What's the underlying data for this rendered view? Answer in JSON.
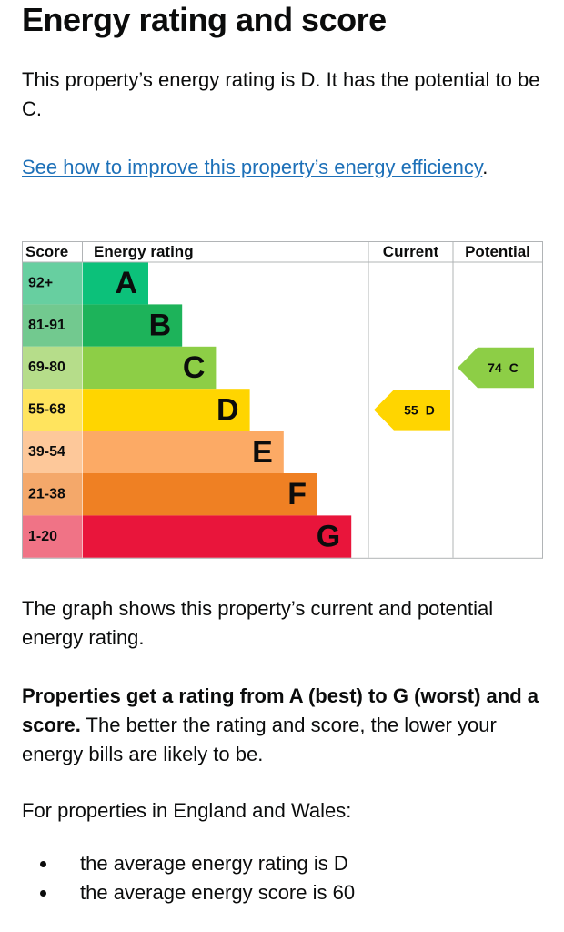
{
  "title": "Energy rating and score",
  "intro": "This property’s energy rating is D. It has the potential to be C.",
  "link": {
    "text": "See how to improve this property’s energy efficiency",
    "after": "."
  },
  "graph": {
    "headers": [
      "Score",
      "Energy rating",
      "Current",
      "Potential"
    ],
    "bands": [
      {
        "score": "92+",
        "letter": "A",
        "color": "#0cc17a",
        "score_color": "#67cfa0"
      },
      {
        "score": "81-91",
        "letter": "B",
        "color": "#1db35a",
        "score_color": "#72c98f"
      },
      {
        "score": "69-80",
        "letter": "C",
        "color": "#8dce46",
        "score_color": "#b6dd8a"
      },
      {
        "score": "55-68",
        "letter": "D",
        "color": "#ffd500",
        "score_color": "#ffe45e"
      },
      {
        "score": "39-54",
        "letter": "E",
        "color": "#fcaa65",
        "score_color": "#fdc89a"
      },
      {
        "score": "21-38",
        "letter": "F",
        "color": "#ef8023",
        "score_color": "#f4a86a"
      },
      {
        "score": "1-20",
        "letter": "G",
        "color": "#e9153b",
        "score_color": "#f07386"
      }
    ],
    "current": {
      "score": 55,
      "letter": "D"
    },
    "potential": {
      "score": 74,
      "letter": "C"
    }
  },
  "graph_caption": "The graph shows this property’s current and potential energy rating.",
  "explanation": {
    "bold": "Properties get a rating from A (best) to G (worst) and a score.",
    "text": " The better the rating and score, the lower your energy bills are likely to be."
  },
  "averages_intro": "For properties in England and Wales:",
  "averages": [
    "the average energy rating is D",
    "the average energy score is 60"
  ]
}
